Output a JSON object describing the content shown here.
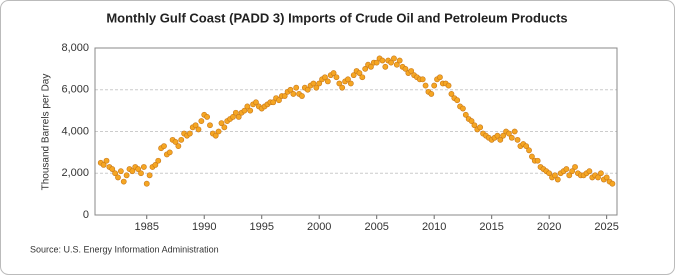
{
  "chart_data": {
    "type": "scatter",
    "title": "Monthly Gulf Coast (PADD 3) Imports of Crude Oil and Petroleum Products",
    "y_label": "Thousand Barrels per Day",
    "source": "Source: U.S. Energy Information Administration",
    "color": "#f5a623",
    "grid": true,
    "xlim": [
      1980.5,
      2025.9
    ],
    "xticks": [
      1985,
      1990,
      1995,
      2000,
      2005,
      2010,
      2015,
      2020,
      2025
    ],
    "ylim": [
      0,
      8000
    ],
    "yticks": [
      0,
      {
        "value": 2000,
        "label": "2,000"
      },
      {
        "value": 4000,
        "label": "4,000"
      },
      {
        "value": 6000,
        "label": "6,000"
      },
      {
        "value": 8000,
        "label": "8,000"
      }
    ],
    "x": [
      1981,
      1981.25,
      1981.5,
      1981.75,
      1982,
      1982.25,
      1982.5,
      1982.75,
      1983,
      1983.25,
      1983.5,
      1983.75,
      1984,
      1984.25,
      1984.5,
      1984.75,
      1985,
      1985.25,
      1985.5,
      1985.75,
      1986,
      1986.25,
      1986.5,
      1986.75,
      1987,
      1987.25,
      1987.5,
      1987.75,
      1988,
      1988.25,
      1988.5,
      1988.75,
      1989,
      1989.25,
      1989.5,
      1989.75,
      1990,
      1990.25,
      1990.5,
      1990.75,
      1991,
      1991.25,
      1991.5,
      1991.75,
      1992,
      1992.25,
      1992.5,
      1992.75,
      1993,
      1993.25,
      1993.5,
      1993.75,
      1994,
      1994.25,
      1994.5,
      1994.75,
      1995,
      1995.25,
      1995.5,
      1995.75,
      1996,
      1996.25,
      1996.5,
      1996.75,
      1997,
      1997.25,
      1997.5,
      1997.75,
      1998,
      1998.25,
      1998.5,
      1998.75,
      1999,
      1999.25,
      1999.5,
      1999.75,
      2000,
      2000.25,
      2000.5,
      2000.75,
      2001,
      2001.25,
      2001.5,
      2001.75,
      2002,
      2002.25,
      2002.5,
      2002.75,
      2003,
      2003.25,
      2003.5,
      2003.75,
      2004,
      2004.25,
      2004.5,
      2004.75,
      2005,
      2005.25,
      2005.5,
      2005.75,
      2006,
      2006.25,
      2006.5,
      2006.75,
      2007,
      2007.25,
      2007.5,
      2007.75,
      2008,
      2008.25,
      2008.5,
      2008.75,
      2009,
      2009.25,
      2009.5,
      2009.75,
      2010,
      2010.25,
      2010.5,
      2010.75,
      2011,
      2011.25,
      2011.5,
      2011.75,
      2012,
      2012.25,
      2012.5,
      2012.75,
      2013,
      2013.25,
      2013.5,
      2013.75,
      2014,
      2014.25,
      2014.5,
      2014.75,
      2015,
      2015.25,
      2015.5,
      2015.75,
      2016,
      2016.25,
      2016.5,
      2016.75,
      2017,
      2017.25,
      2017.5,
      2017.75,
      2018,
      2018.25,
      2018.5,
      2018.75,
      2019,
      2019.25,
      2019.5,
      2019.75,
      2020,
      2020.25,
      2020.5,
      2020.75,
      2021,
      2021.25,
      2021.5,
      2021.75,
      2022,
      2022.25,
      2022.5,
      2022.75,
      2023,
      2023.25,
      2023.5,
      2023.75,
      2024,
      2024.25,
      2024.5,
      2024.75,
      2025,
      2025.25,
      2025.5
    ],
    "values": [
      2500,
      2400,
      2600,
      2300,
      2200,
      2000,
      1800,
      2100,
      1600,
      1900,
      2200,
      2100,
      2300,
      2200,
      2000,
      2300,
      1500,
      1900,
      2300,
      2400,
      2600,
      3200,
      3300,
      2900,
      3000,
      3600,
      3500,
      3300,
      3600,
      3900,
      3800,
      3900,
      4200,
      4300,
      4100,
      4500,
      4800,
      4700,
      4300,
      3900,
      3800,
      4000,
      4400,
      4200,
      4500,
      4600,
      4700,
      4900,
      4700,
      4900,
      5000,
      5200,
      5000,
      5300,
      5400,
      5200,
      5100,
      5200,
      5300,
      5400,
      5400,
      5600,
      5500,
      5700,
      5700,
      5900,
      6000,
      5800,
      6100,
      5800,
      5700,
      6100,
      6000,
      6200,
      6300,
      6100,
      6300,
      6500,
      6600,
      6400,
      6700,
      6800,
      6600,
      6300,
      6100,
      6400,
      6500,
      6300,
      6700,
      6900,
      6800,
      6600,
      7000,
      7200,
      7100,
      7300,
      7300,
      7500,
      7400,
      7100,
      7400,
      7300,
      7500,
      7200,
      7400,
      7100,
      7000,
      6800,
      6900,
      6700,
      6600,
      6500,
      6500,
      6200,
      5900,
      5800,
      6200,
      6500,
      6600,
      6300,
      6300,
      6200,
      5800,
      5600,
      5500,
      5200,
      5100,
      4800,
      4600,
      4500,
      4300,
      4100,
      4200,
      3900,
      3800,
      3700,
      3600,
      3700,
      3800,
      3600,
      3800,
      4000,
      3900,
      3700,
      4000,
      3600,
      3300,
      3400,
      3300,
      3100,
      2800,
      2600,
      2600,
      2300,
      2200,
      2100,
      2000,
      1800,
      1900,
      1700,
      2000,
      2100,
      2200,
      1900,
      2100,
      2300,
      2000,
      1900,
      1900,
      2000,
      2100,
      1800,
      1900,
      1800,
      2000,
      1700,
      1800,
      1600,
      1500
    ]
  }
}
